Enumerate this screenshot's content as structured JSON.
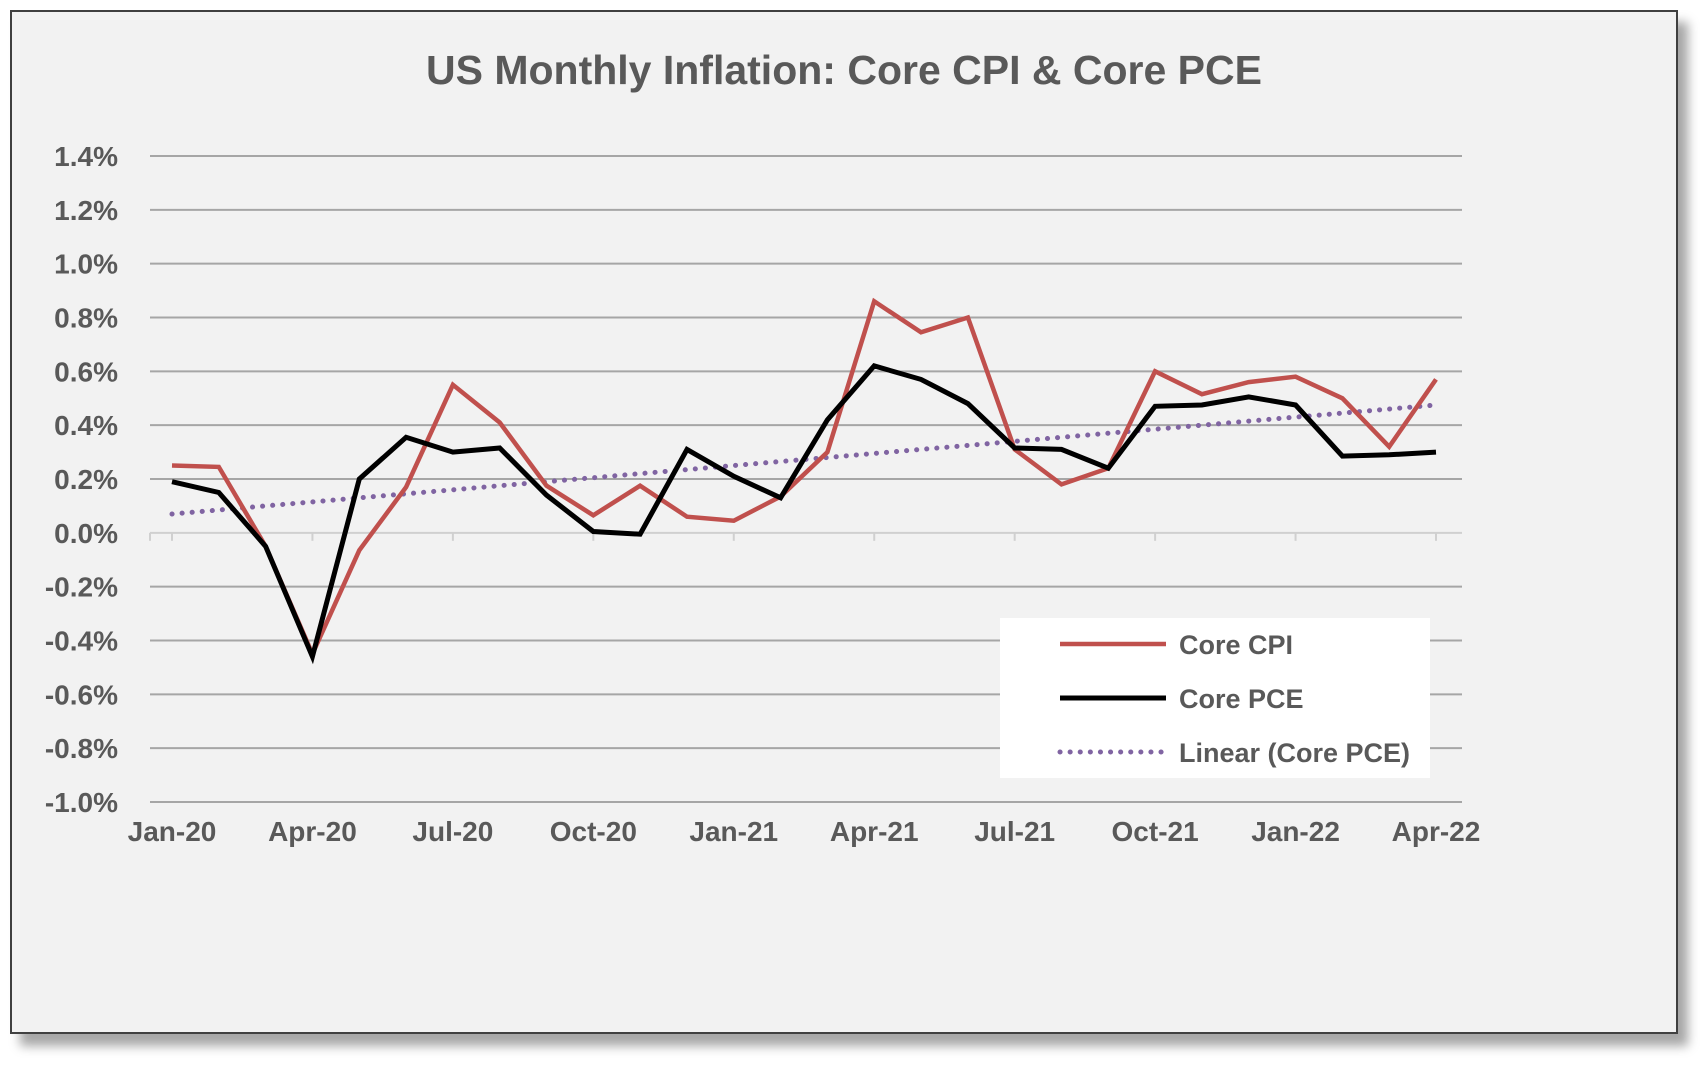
{
  "chart_data": {
    "type": "line",
    "title": "US Monthly Inflation: Core CPI & Core PCE",
    "xlabel": "",
    "ylabel": "",
    "x": [
      "Jan-20",
      "Feb-20",
      "Mar-20",
      "Apr-20",
      "May-20",
      "Jun-20",
      "Jul-20",
      "Aug-20",
      "Sep-20",
      "Oct-20",
      "Nov-20",
      "Dec-20",
      "Jan-21",
      "Feb-21",
      "Mar-21",
      "Apr-21",
      "May-21",
      "Jun-21",
      "Jul-21",
      "Aug-21",
      "Sep-21",
      "Oct-21",
      "Nov-21",
      "Dec-21",
      "Jan-22",
      "Feb-22",
      "Mar-22",
      "Apr-22"
    ],
    "x_tick_labels": [
      "Jan-20",
      "Apr-20",
      "Jul-20",
      "Oct-20",
      "Jan-21",
      "Apr-21",
      "Jul-21",
      "Oct-21",
      "Jan-22",
      "Apr-22"
    ],
    "y_tick_labels": [
      "1.4%",
      "1.2%",
      "1.0%",
      "0.8%",
      "0.6%",
      "0.4%",
      "0.2%",
      "0.0%",
      "-0.2%",
      "-0.4%",
      "-0.6%",
      "-0.8%",
      "-1.0%"
    ],
    "ylim": [
      -1.0,
      1.4
    ],
    "y_unit": "%",
    "grid": true,
    "legend_position": "bottom-right",
    "series": [
      {
        "name": "Core CPI",
        "color": "#c0504d",
        "style": "solid",
        "values": [
          0.25,
          0.245,
          -0.05,
          -0.45,
          -0.065,
          0.17,
          0.55,
          0.41,
          0.175,
          0.065,
          0.175,
          0.06,
          0.045,
          0.135,
          0.3,
          0.86,
          0.745,
          0.8,
          0.31,
          0.18,
          0.24,
          0.6,
          0.515,
          0.56,
          0.58,
          0.5,
          0.32,
          0.57
        ]
      },
      {
        "name": "Core PCE",
        "color": "#000000",
        "style": "solid",
        "values": [
          0.19,
          0.15,
          -0.05,
          -0.46,
          0.2,
          0.355,
          0.3,
          0.315,
          0.14,
          0.005,
          -0.005,
          0.31,
          0.21,
          0.13,
          0.42,
          0.62,
          0.57,
          0.48,
          0.315,
          0.31,
          0.24,
          0.47,
          0.475,
          0.505,
          0.475,
          0.285,
          0.29,
          0.3
        ]
      },
      {
        "name": "Linear (Core PCE)",
        "color": "#8064a2",
        "style": "dotted",
        "values": [
          0.07,
          0.085,
          0.1,
          0.115,
          0.13,
          0.145,
          0.16,
          0.175,
          0.19,
          0.205,
          0.22,
          0.235,
          0.25,
          0.265,
          0.28,
          0.295,
          0.31,
          0.325,
          0.34,
          0.355,
          0.37,
          0.385,
          0.4,
          0.415,
          0.43,
          0.445,
          0.46,
          0.475
        ]
      }
    ]
  }
}
